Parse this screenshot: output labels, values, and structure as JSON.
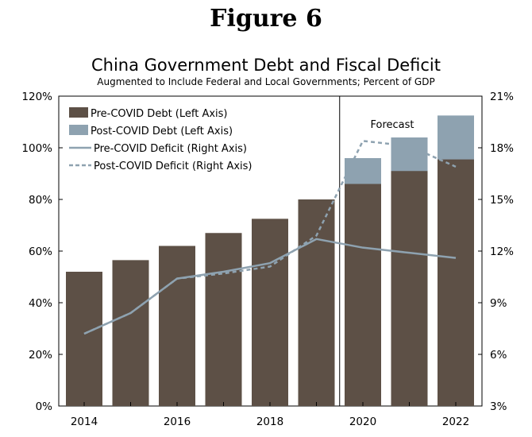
{
  "figure_label": "Figure 6",
  "colors": {
    "pre_debt": "#5d5046",
    "post_debt": "#8ea2b0",
    "pre_deficit": "#8ea2b0",
    "post_deficit": "#8ea2b0"
  },
  "chart_data": {
    "type": "bar",
    "title": "China Government Debt and Fiscal Deficit",
    "subtitle": "Augmented to Include Federal and Local Governments; Percent of GDP",
    "x": [
      2014,
      2015,
      2016,
      2017,
      2018,
      2019,
      2020,
      2021,
      2022
    ],
    "xtick_labels": [
      "2014",
      "2016",
      "2018",
      "2020",
      "2022"
    ],
    "xtick_years": [
      2014,
      2016,
      2018,
      2020,
      2022
    ],
    "y_left": {
      "range": [
        0,
        120
      ],
      "ticks": [
        0,
        20,
        40,
        60,
        80,
        100,
        120
      ],
      "tick_labels": [
        "0%",
        "20%",
        "40%",
        "60%",
        "80%",
        "100%",
        "120%"
      ]
    },
    "y_right": {
      "range": [
        3,
        21
      ],
      "ticks": [
        3,
        6,
        9,
        12,
        15,
        18,
        21
      ],
      "tick_labels": [
        "3%",
        "6%",
        "9%",
        "12%",
        "15%",
        "18%",
        "21%"
      ]
    },
    "series": [
      {
        "name": "Pre-COVID Debt (Left Axis)",
        "kind": "bar",
        "axis": "left",
        "values": [
          52,
          56.5,
          62,
          67,
          72.5,
          80,
          86,
          91,
          95.5
        ]
      },
      {
        "name": "Post-COVID Debt (Left Axis)",
        "kind": "bar",
        "axis": "left",
        "values": [
          null,
          null,
          null,
          null,
          null,
          null,
          96,
          104,
          112.5
        ]
      },
      {
        "name": "Pre-COVID Deficit (Right Axis)",
        "kind": "line",
        "axis": "right",
        "style": "solid",
        "values": [
          7.2,
          8.4,
          10.4,
          10.8,
          11.3,
          12.7,
          12.2,
          11.9,
          11.6
        ]
      },
      {
        "name": "Post-COVID Deficit (Right Axis)",
        "kind": "line",
        "axis": "right",
        "style": "dashed",
        "values": [
          7.2,
          8.4,
          10.4,
          10.7,
          11.1,
          12.9,
          18.4,
          18.1,
          16.9
        ]
      }
    ],
    "annotations": [
      {
        "text": "Forecast",
        "divider_between": [
          2019,
          2020
        ]
      }
    ],
    "legend_position": "top-left",
    "grid": false
  }
}
